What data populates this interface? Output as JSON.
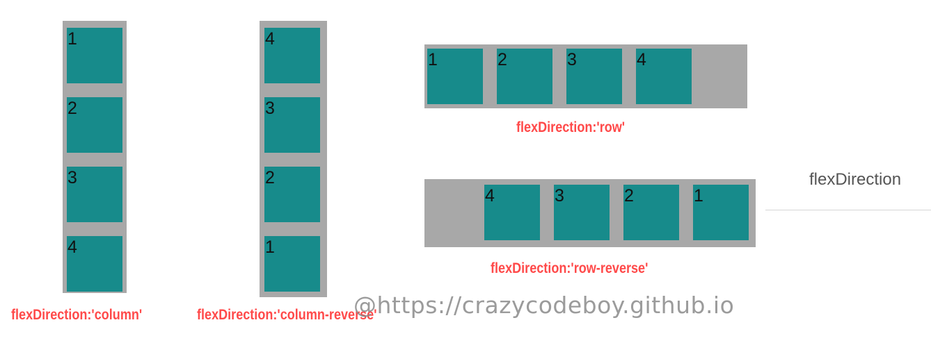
{
  "examples": {
    "column": {
      "caption": "flexDirection:'column'",
      "items": [
        "1",
        "2",
        "3",
        "4"
      ]
    },
    "column_reverse": {
      "caption": "flexDirection:'column-reverse'",
      "items": [
        "4",
        "3",
        "2",
        "1"
      ]
    },
    "row": {
      "caption": "flexDirection:'row'",
      "items": [
        "1",
        "2",
        "3",
        "4"
      ]
    },
    "row_reverse": {
      "caption": "flexDirection:'row-reverse'",
      "items": [
        "4",
        "3",
        "2",
        "1"
      ]
    }
  },
  "side_label": "flexDirection",
  "watermark": "@https://crazycodeboy.github.io",
  "colors": {
    "container": "#a8a8a8",
    "box": "#178b8b",
    "caption": "#ff4a4a"
  }
}
